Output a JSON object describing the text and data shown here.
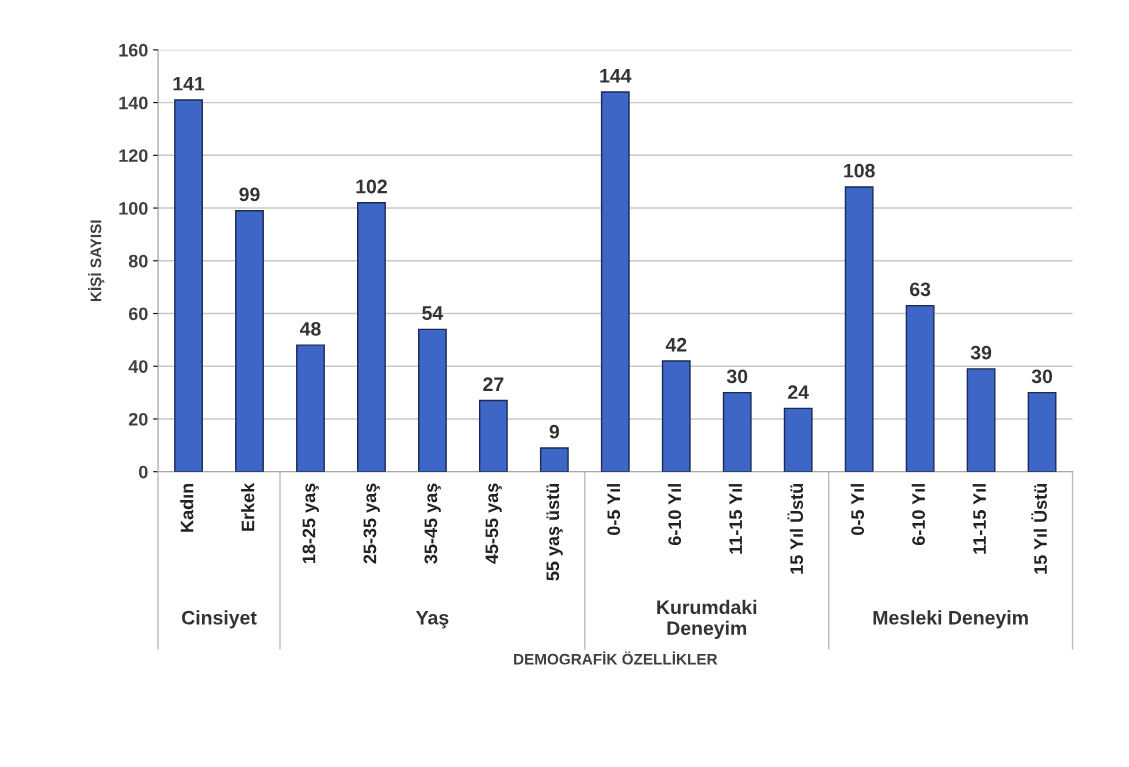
{
  "chart_data": {
    "type": "bar",
    "xlabel": "DEMOGRAFİK ÖZELLİKLER",
    "ylabel": "KİŞİ SAYISI",
    "categories": [
      "Kadın",
      "Erkek",
      "18-25 yaş",
      "25-35 yaş",
      "35-45 yaş",
      "45-55 yaş",
      "55 yaş üstü",
      "0-5 Yıl",
      "6-10 Yıl",
      "11-15 Yıl",
      "15 Yıl Üstü",
      "0-5 Yıl",
      "6-10 Yıl",
      "11-15 Yıl",
      "15 Yıl Üstü"
    ],
    "values": [
      141,
      99,
      48,
      102,
      54,
      27,
      9,
      144,
      42,
      30,
      24,
      108,
      63,
      39,
      30
    ],
    "color": "#3d66c6",
    "ylim": [
      0,
      160
    ],
    "yticks": [
      0,
      20,
      40,
      60,
      80,
      100,
      120,
      140,
      160
    ],
    "grid": "y",
    "data_labels": true,
    "legend": false,
    "annotations": [
      "Cinsiyet",
      "Yaş",
      "Kurumdaki\nDeneyim",
      "Mesleki Deneyim"
    ]
  }
}
